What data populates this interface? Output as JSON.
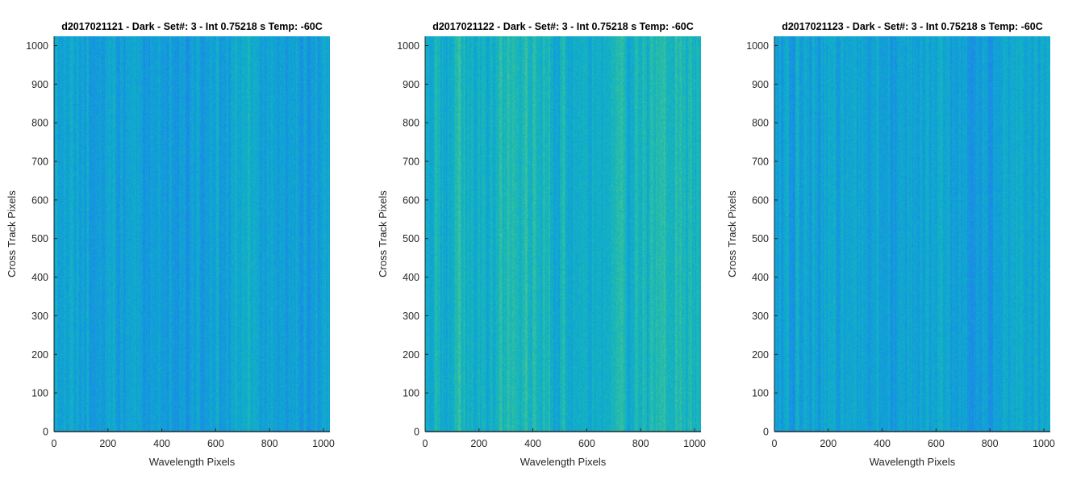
{
  "colormap": {
    "name": "parula",
    "stops": [
      "#3e26a8",
      "#2f6ffc",
      "#1595df",
      "#0fadcc",
      "#21bcac",
      "#5ec58a",
      "#a5c35d",
      "#e2b936",
      "#f9d925"
    ]
  },
  "chart_data": [
    {
      "type": "heatmap",
      "title": "d2017021121 - Dark - Set#: 3 - Int 0.75218 s Temp: -60C",
      "xlabel": "Wavelength Pixels",
      "ylabel": "Cross Track Pixels",
      "xlim": [
        0,
        1024
      ],
      "ylim": [
        0,
        1024
      ],
      "xticks": [
        0,
        200,
        400,
        600,
        800,
        1000
      ],
      "yticks": [
        0,
        100,
        200,
        300,
        400,
        500,
        600,
        700,
        800,
        900,
        1000
      ],
      "mean_level": 0.3,
      "column_variation": 0.06,
      "warm_bands": [
        {
          "center": 20,
          "width": 40,
          "amount": 0.05
        },
        {
          "center": 700,
          "width": 90,
          "amount": 0.05
        }
      ]
    },
    {
      "type": "heatmap",
      "title": "d2017021122 - Dark - Set#: 3 - Int 0.75218 s Temp: -60C",
      "xlabel": "Wavelength Pixels",
      "ylabel": "Cross Track Pixels",
      "xlim": [
        0,
        1024
      ],
      "ylim": [
        0,
        1024
      ],
      "xticks": [
        0,
        200,
        400,
        600,
        800,
        1000
      ],
      "yticks": [
        0,
        100,
        200,
        300,
        400,
        500,
        600,
        700,
        800,
        900,
        1000
      ],
      "mean_level": 0.4,
      "column_variation": 0.07,
      "warm_bands": [
        {
          "center": 380,
          "width": 80,
          "amount": 0.06
        },
        {
          "center": 900,
          "width": 110,
          "amount": 0.09
        }
      ]
    },
    {
      "type": "heatmap",
      "title": "d2017021123 - Dark - Set#: 3 - Int 0.75218 s Temp: -60C",
      "xlabel": "Wavelength Pixels",
      "ylabel": "Cross Track Pixels",
      "xlim": [
        0,
        1024
      ],
      "ylim": [
        0,
        1024
      ],
      "xticks": [
        0,
        200,
        400,
        600,
        800,
        1000
      ],
      "yticks": [
        0,
        100,
        200,
        300,
        400,
        500,
        600,
        700,
        800,
        900,
        1000
      ],
      "mean_level": 0.31,
      "column_variation": 0.06,
      "warm_bands": [
        {
          "center": 550,
          "width": 80,
          "amount": 0.04
        },
        {
          "center": 920,
          "width": 100,
          "amount": 0.06
        }
      ]
    }
  ]
}
